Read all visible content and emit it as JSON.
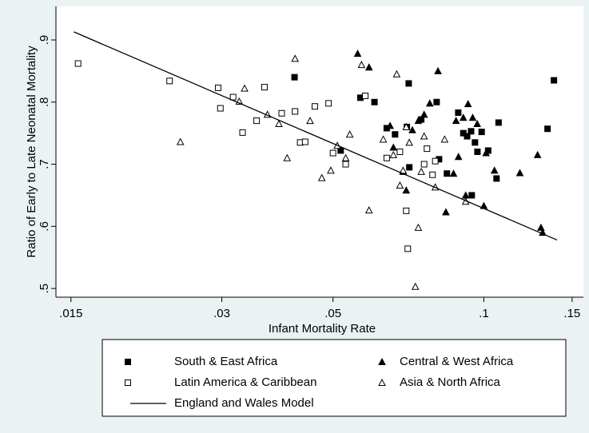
{
  "chart_data": {
    "type": "scatter",
    "xlabel": "Infant Mortality Rate",
    "ylabel": "Ratio of Early to Late Neonatal Mortality",
    "xscale": "log",
    "xlim": [
      0.014,
      0.158
    ],
    "ylim": [
      0.486,
      0.954
    ],
    "xticks": [
      {
        "value": 0.015,
        "label": ".015"
      },
      {
        "value": 0.03,
        "label": ".03"
      },
      {
        "value": 0.05,
        "label": ".05"
      },
      {
        "value": 0.1,
        "label": ".1"
      },
      {
        "value": 0.15,
        "label": ".15"
      }
    ],
    "yticks": [
      {
        "value": 0.5,
        "label": ".5"
      },
      {
        "value": 0.6,
        "label": ".6"
      },
      {
        "value": 0.7,
        "label": ".7"
      },
      {
        "value": 0.8,
        "label": ".8"
      },
      {
        "value": 0.9,
        "label": ".9"
      }
    ],
    "grid": false,
    "legend": "bottom",
    "series": [
      {
        "name": "South & East Africa",
        "color": "#000000",
        "marker": "square-filled",
        "x": [
          0.0419,
          0.0518,
          0.0567,
          0.0605,
          0.0708,
          0.064,
          0.0665,
          0.0702,
          0.071,
          0.075,
          0.0805,
          0.0814,
          0.0844,
          0.0889,
          0.091,
          0.0926,
          0.0943,
          0.0946,
          0.096,
          0.0971,
          0.099,
          0.102,
          0.106,
          0.107,
          0.134,
          0.138
        ],
        "values": [
          0.84,
          0.722,
          0.807,
          0.8,
          0.83,
          0.758,
          0.748,
          0.76,
          0.695,
          0.772,
          0.8,
          0.708,
          0.685,
          0.783,
          0.75,
          0.745,
          0.753,
          0.65,
          0.735,
          0.72,
          0.752,
          0.722,
          0.677,
          0.767,
          0.757,
          0.835
        ]
      },
      {
        "name": "Central & West Africa",
        "color": "#000000",
        "marker": "triangle-filled",
        "x": [
          0.056,
          0.059,
          0.066,
          0.065,
          0.069,
          0.07,
          0.072,
          0.074,
          0.076,
          0.078,
          0.081,
          0.084,
          0.087,
          0.088,
          0.089,
          0.091,
          0.092,
          0.093,
          0.095,
          0.097,
          0.1,
          0.101,
          0.105,
          0.118,
          0.128,
          0.13,
          0.131
        ],
        "values": [
          0.878,
          0.856,
          0.727,
          0.762,
          0.688,
          0.658,
          0.755,
          0.77,
          0.78,
          0.798,
          0.85,
          0.623,
          0.685,
          0.77,
          0.712,
          0.775,
          0.65,
          0.797,
          0.775,
          0.765,
          0.633,
          0.718,
          0.69,
          0.686,
          0.715,
          0.598,
          0.59
        ]
      },
      {
        "name": "Latin America & Caribbean",
        "color": "#000000",
        "marker": "square-open",
        "x": [
          0.0155,
          0.0236,
          0.0295,
          0.0298,
          0.0316,
          0.033,
          0.0352,
          0.0365,
          0.0395,
          0.042,
          0.043,
          0.044,
          0.046,
          0.049,
          0.05,
          0.053,
          0.058,
          0.064,
          0.068,
          0.07,
          0.0705,
          0.076,
          0.079,
          0.08,
          0.077
        ],
        "values": [
          0.862,
          0.834,
          0.823,
          0.79,
          0.808,
          0.751,
          0.77,
          0.824,
          0.782,
          0.785,
          0.735,
          0.736,
          0.793,
          0.798,
          0.718,
          0.7,
          0.81,
          0.71,
          0.72,
          0.625,
          0.564,
          0.7,
          0.683,
          0.705,
          0.725
        ]
      },
      {
        "name": "Asia & North Africa",
        "color": "#000000",
        "marker": "triangle-open",
        "x": [
          0.0248,
          0.0333,
          0.0325,
          0.037,
          0.039,
          0.0405,
          0.042,
          0.045,
          0.0475,
          0.0495,
          0.051,
          0.053,
          0.054,
          0.057,
          0.059,
          0.063,
          0.066,
          0.067,
          0.068,
          0.069,
          0.07,
          0.071,
          0.073,
          0.074,
          0.075,
          0.076,
          0.08,
          0.0835,
          0.092
        ],
        "values": [
          0.736,
          0.822,
          0.801,
          0.78,
          0.765,
          0.71,
          0.87,
          0.77,
          0.678,
          0.69,
          0.73,
          0.71,
          0.748,
          0.86,
          0.626,
          0.74,
          0.715,
          0.845,
          0.666,
          0.69,
          0.76,
          0.735,
          0.503,
          0.598,
          0.688,
          0.745,
          0.663,
          0.74,
          0.64
        ]
      },
      {
        "name": "England and Wales Model",
        "color": "#000000",
        "marker": "line",
        "x": [
          0.0152,
          0.14
        ],
        "values": [
          0.913,
          0.578
        ]
      }
    ]
  }
}
